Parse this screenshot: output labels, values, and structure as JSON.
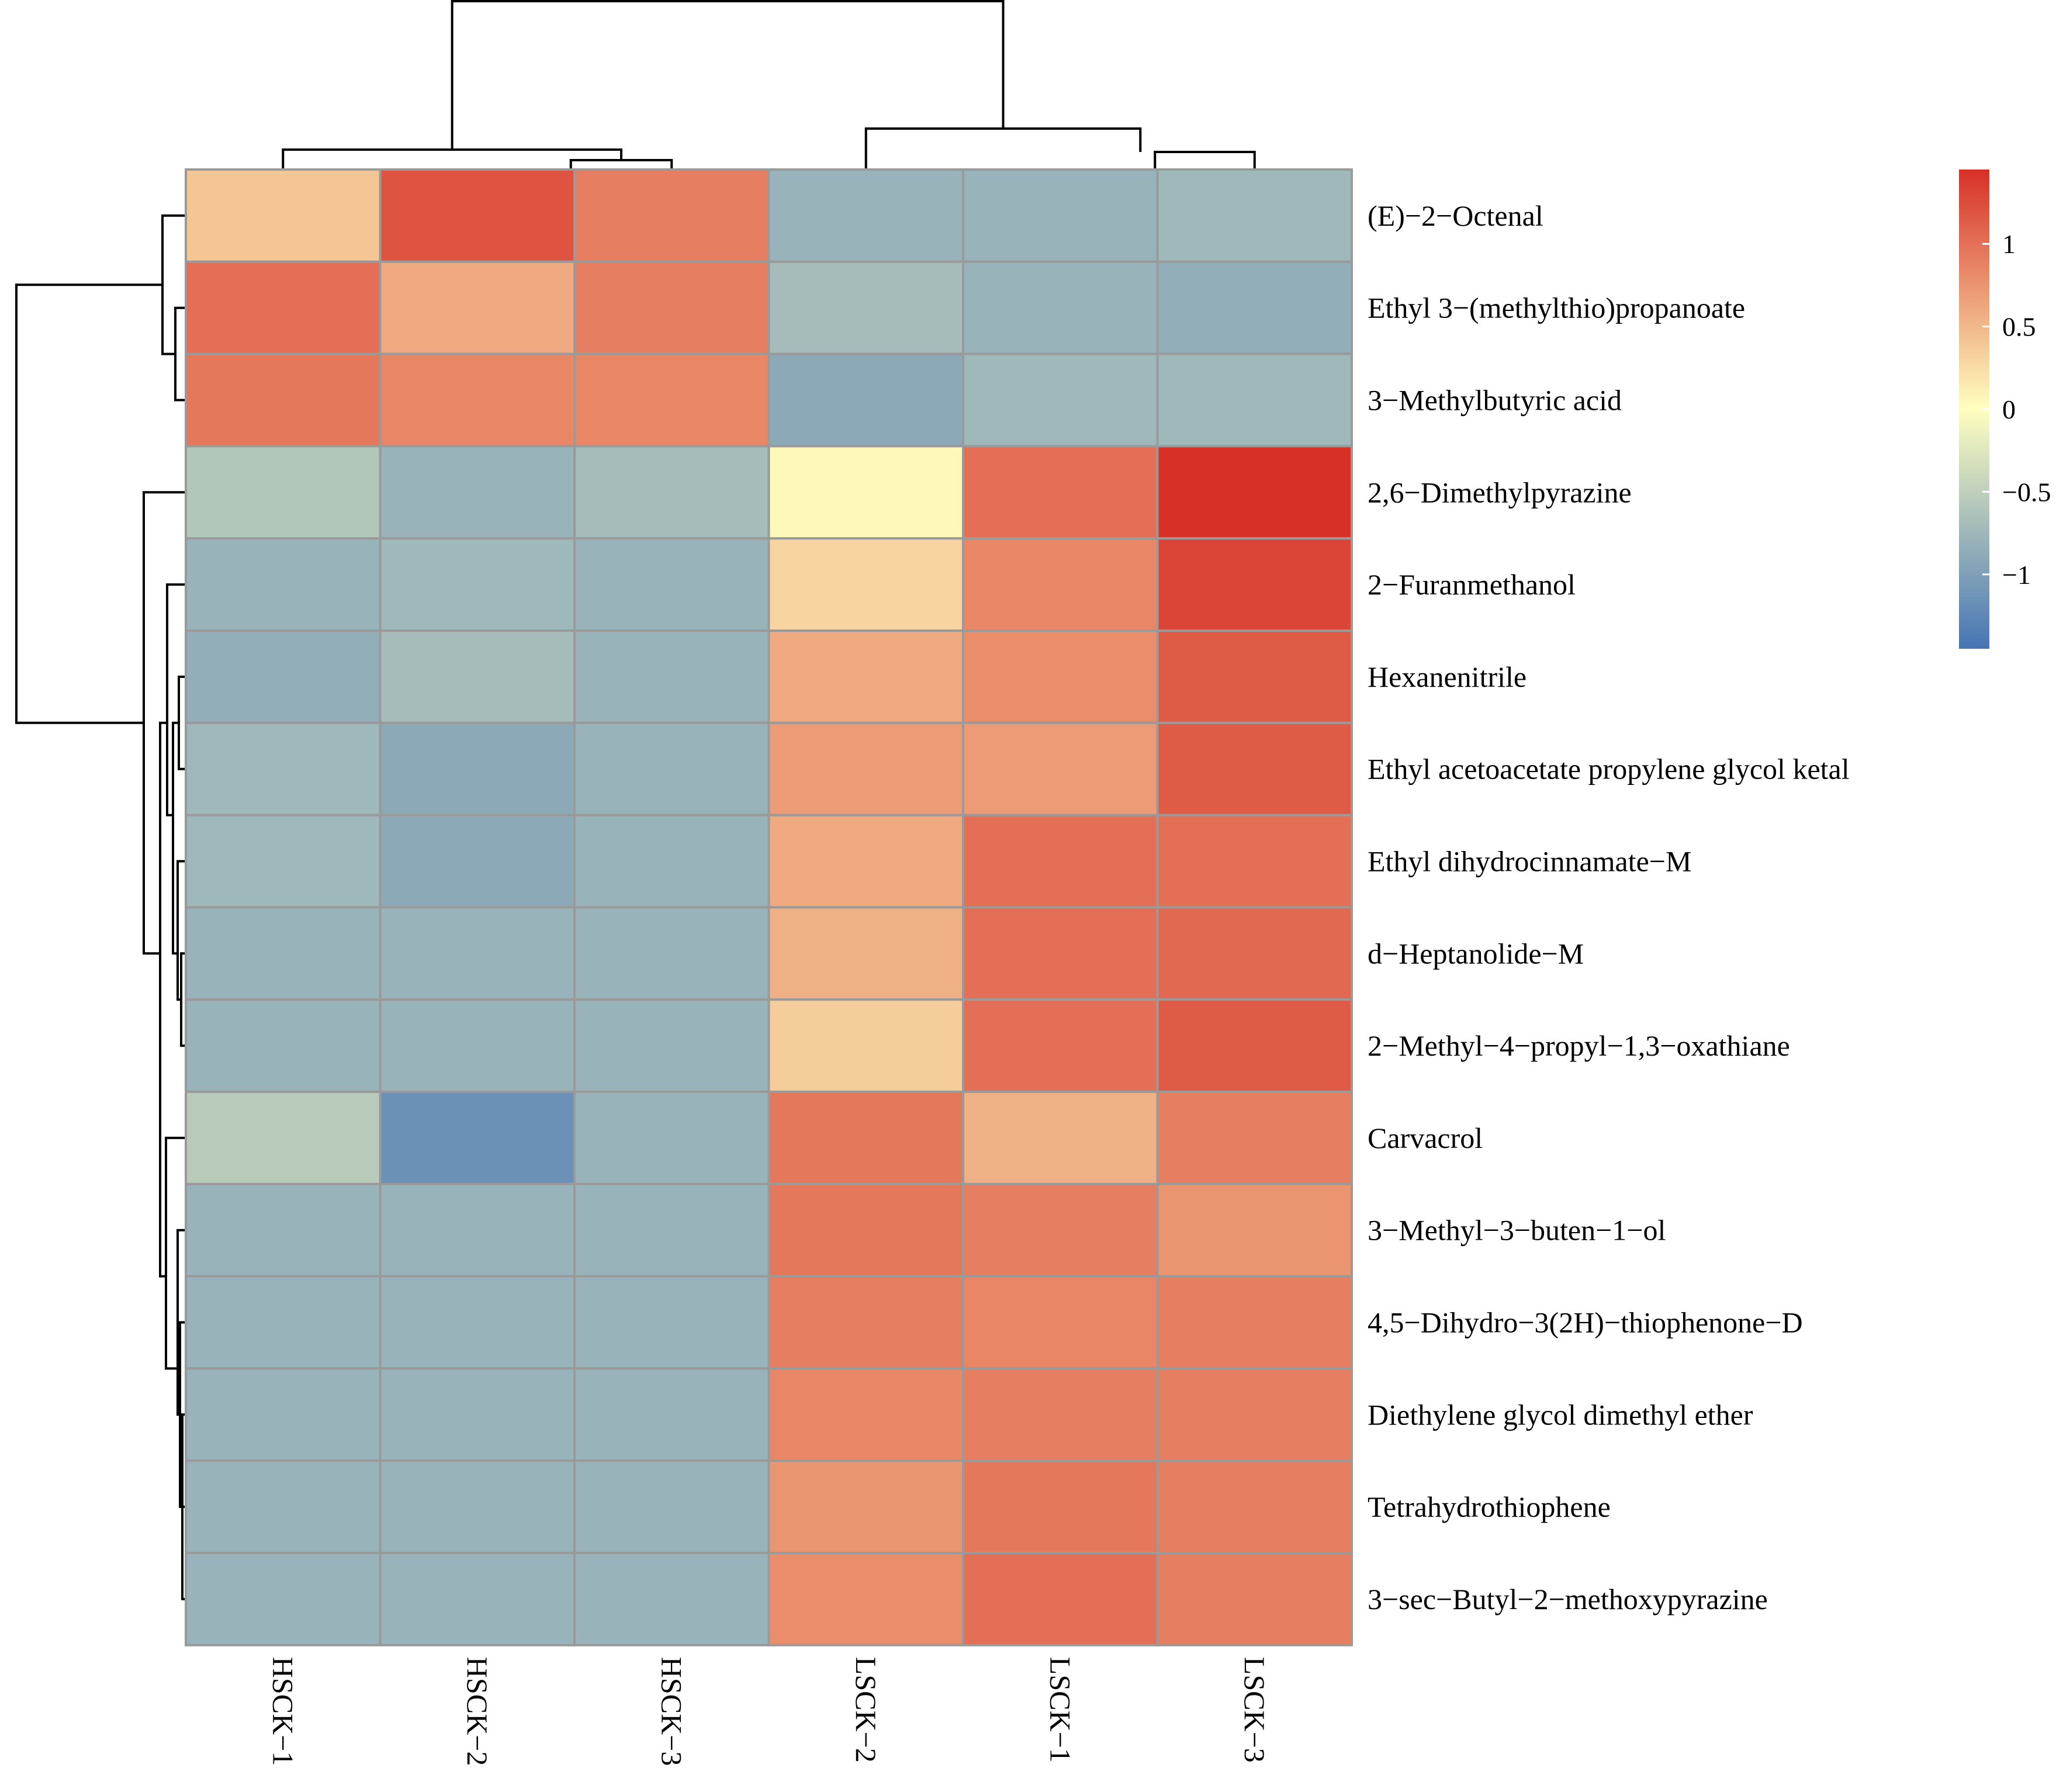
{
  "chart_data": {
    "type": "heatmap",
    "title": "",
    "columns": [
      "HSCK−1",
      "HSCK−2",
      "HSCK−3",
      "LSCK−2",
      "LSCK−1",
      "LSCK−3"
    ],
    "rows": [
      "(E)−2−Octenal",
      "Ethyl 3−(methylthio)propanoate",
      "3−Methylbutyric acid",
      "2,6−Dimethylpyrazine",
      "2−Furanmethanol",
      "Hexanenitrile",
      "Ethyl acetoacetate propylene glycol ketal",
      "Ethyl dihydrocinnamate−M",
      "d−Heptanolide−M",
      "2−Methyl−4−propyl−1,3−oxathiane",
      "Carvacrol",
      "3−Methyl−3−buten−1−ol",
      "4,5−Dihydro−3(2H)−thiophenone−D",
      "Diethylene glycol dimethyl ether",
      "Tetrahydrothiophene",
      "3−sec−Butyl−2−methoxypyrazine"
    ],
    "values": [
      [
        0.4,
        1.2,
        0.9,
        -0.8,
        -0.8,
        -0.75
      ],
      [
        1.0,
        0.6,
        0.9,
        -0.7,
        -0.8,
        -0.85
      ],
      [
        0.95,
        0.85,
        0.85,
        -0.9,
        -0.75,
        -0.75
      ],
      [
        -0.6,
        -0.8,
        -0.7,
        0.05,
        1.0,
        1.45
      ],
      [
        -0.8,
        -0.75,
        -0.8,
        0.3,
        0.85,
        1.3
      ],
      [
        -0.85,
        -0.7,
        -0.8,
        0.6,
        0.8,
        1.15
      ],
      [
        -0.75,
        -0.9,
        -0.8,
        0.7,
        0.7,
        1.15
      ],
      [
        -0.75,
        -0.9,
        -0.8,
        0.6,
        1.0,
        1.0
      ],
      [
        -0.8,
        -0.8,
        -0.8,
        0.55,
        1.0,
        1.05
      ],
      [
        -0.8,
        -0.8,
        -0.8,
        0.35,
        1.0,
        1.15
      ],
      [
        -0.55,
        -1.15,
        -0.8,
        0.95,
        0.55,
        0.9
      ],
      [
        -0.8,
        -0.8,
        -0.8,
        0.95,
        0.9,
        0.75
      ],
      [
        -0.8,
        -0.8,
        -0.8,
        0.9,
        0.85,
        0.9
      ],
      [
        -0.8,
        -0.8,
        -0.8,
        0.85,
        0.9,
        0.9
      ],
      [
        -0.8,
        -0.8,
        -0.8,
        0.75,
        0.95,
        0.9
      ],
      [
        -0.8,
        -0.8,
        -0.8,
        0.8,
        1.0,
        0.9
      ]
    ],
    "color_scale": {
      "min": -1.45,
      "max": 1.45,
      "low_color": "#4575b4",
      "mid_color": "#ffffbf",
      "high_color": "#d73027",
      "ticks": [
        1,
        0.5,
        0,
        -0.5,
        -1
      ],
      "tick_labels": [
        "1",
        "0.5",
        "0",
        "−0.5",
        "−1"
      ]
    },
    "grid_color": "#9a9a9a",
    "column_dendrogram": "((HSCK−1,(HSCK−2,HSCK−3)),(LSCK−2,(LSCK−1,LSCK−3)))",
    "row_dendrogram": "((E)-2-Octenal cluster of 3 rows vs remaining 13 rows)",
    "legend_position": "right"
  }
}
